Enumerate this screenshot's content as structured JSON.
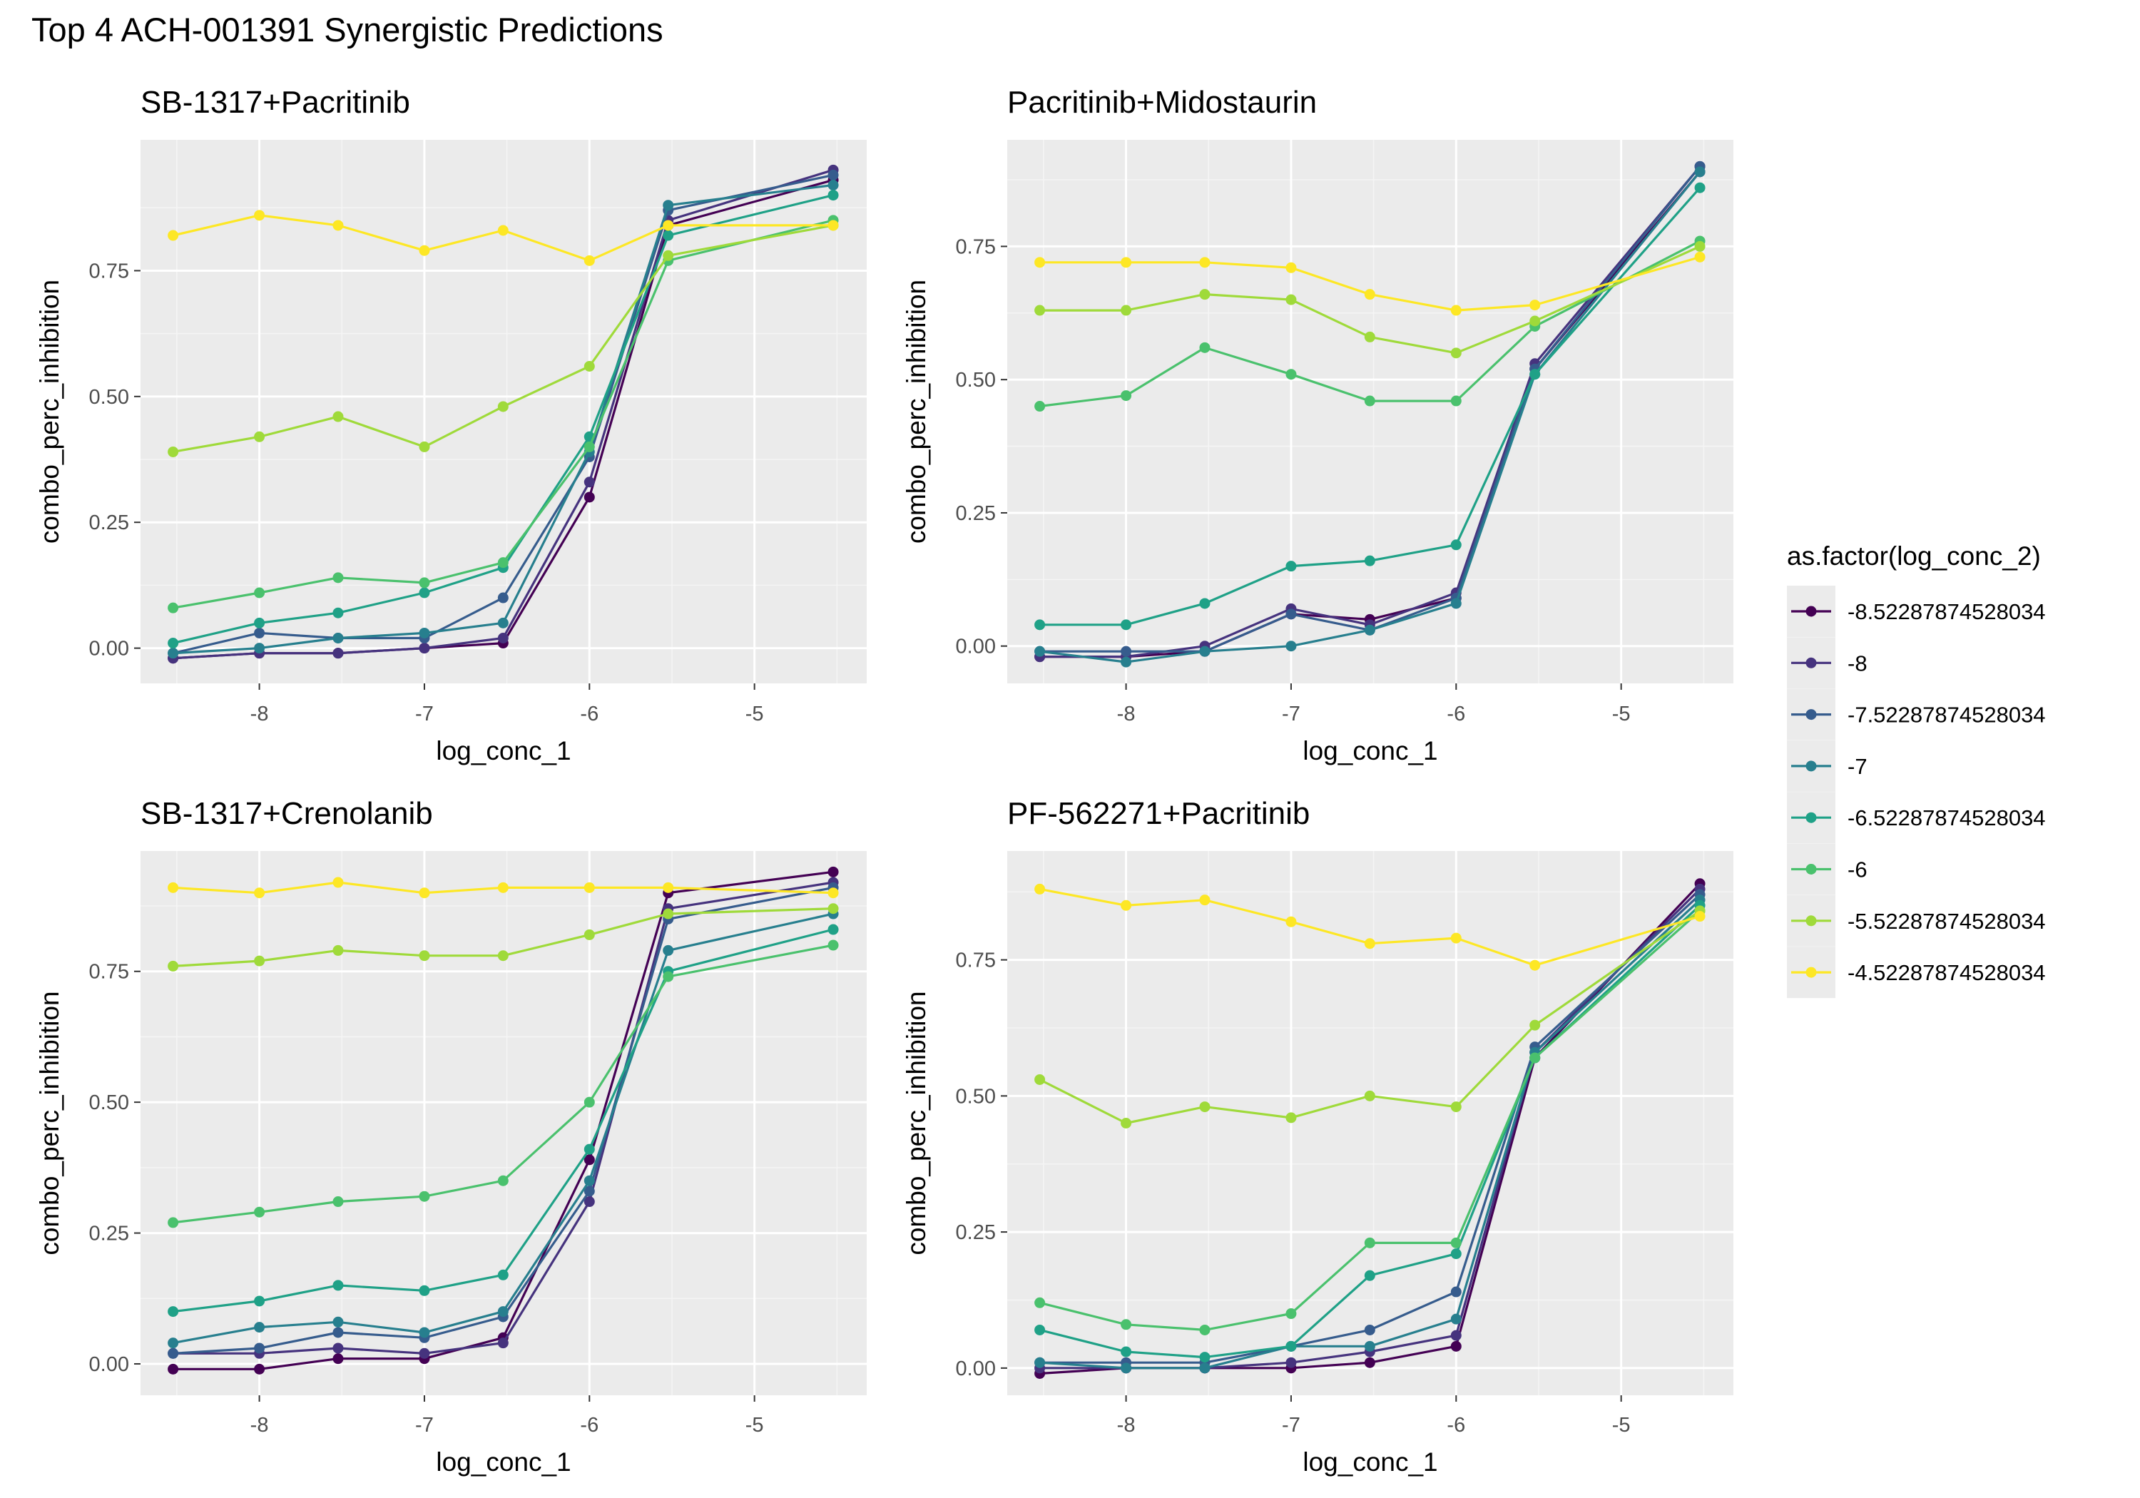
{
  "title": "Top 4 ACH-001391 Synergistic Predictions",
  "legend": {
    "title": "as.factor(log_conc_2)",
    "entries": [
      "-8.52287874528034",
      "-8",
      "-7.52287874528034",
      "-7",
      "-6.52287874528034",
      "-6",
      "-5.52287874528034",
      "-4.52287874528034"
    ],
    "colors": [
      "#440154",
      "#46337E",
      "#365C8D",
      "#277F8E",
      "#1FA187",
      "#4AC16D",
      "#9FDA3A",
      "#FDE725"
    ]
  },
  "chart_data": [
    {
      "type": "line",
      "title": "SB-1317+Pacritinib",
      "xlabel": "log_conc_1",
      "ylabel": "combo_perc_inhibition",
      "x": [
        -8.52287874528034,
        -8,
        -7.52287874528034,
        -7,
        -6.52287874528034,
        -6,
        -5.52287874528034,
        -4.52287874528034
      ],
      "xticks": [
        -8,
        -7,
        -6,
        -5
      ],
      "xtick_labels": [
        "-8",
        "-7",
        "-6",
        "-5"
      ],
      "yticks": [
        0,
        0.25,
        0.5,
        0.75
      ],
      "ytick_labels": [
        "0.00",
        "0.25",
        "0.50",
        "0.75"
      ],
      "xlim": [
        -8.72,
        -4.32
      ],
      "ylim": [
        -0.07,
        1.01
      ],
      "grid": true,
      "series": [
        {
          "name": "-8.52287874528034",
          "values": [
            -0.02,
            -0.01,
            -0.01,
            0.0,
            0.01,
            0.3,
            0.84,
            0.93
          ]
        },
        {
          "name": "-8",
          "values": [
            -0.02,
            -0.01,
            -0.01,
            0.0,
            0.02,
            0.33,
            0.85,
            0.95
          ]
        },
        {
          "name": "-7.52287874528034",
          "values": [
            -0.01,
            0.03,
            0.02,
            0.02,
            0.1,
            0.38,
            0.87,
            0.94
          ]
        },
        {
          "name": "-7",
          "values": [
            -0.01,
            0.0,
            0.02,
            0.03,
            0.05,
            0.39,
            0.88,
            0.92
          ]
        },
        {
          "name": "-6.52287874528034",
          "values": [
            0.01,
            0.05,
            0.07,
            0.11,
            0.16,
            0.42,
            0.82,
            0.9
          ]
        },
        {
          "name": "-6",
          "values": [
            0.08,
            0.11,
            0.14,
            0.13,
            0.17,
            0.4,
            0.77,
            0.85
          ]
        },
        {
          "name": "-5.52287874528034",
          "values": [
            0.39,
            0.42,
            0.46,
            0.4,
            0.48,
            0.56,
            0.78,
            0.84
          ]
        },
        {
          "name": "-4.52287874528034",
          "values": [
            0.82,
            0.86,
            0.84,
            0.79,
            0.83,
            0.77,
            0.84,
            0.84
          ]
        }
      ]
    },
    {
      "type": "line",
      "title": "Pacritinib+Midostaurin",
      "xlabel": "log_conc_1",
      "ylabel": "combo_perc_inhibition",
      "x": [
        -8.52287874528034,
        -8,
        -7.52287874528034,
        -7,
        -6.52287874528034,
        -6,
        -5.52287874528034,
        -4.52287874528034
      ],
      "xticks": [
        -8,
        -7,
        -6,
        -5
      ],
      "xtick_labels": [
        "-8",
        "-7",
        "-6",
        "-5"
      ],
      "yticks": [
        0,
        0.25,
        0.5,
        0.75
      ],
      "ytick_labels": [
        "0.00",
        "0.25",
        "0.50",
        "0.75"
      ],
      "xlim": [
        -8.72,
        -4.32
      ],
      "ylim": [
        -0.07,
        0.95
      ],
      "grid": true,
      "series": [
        {
          "name": "-8.52287874528034",
          "values": [
            -0.02,
            -0.02,
            -0.01,
            0.06,
            0.05,
            0.09,
            0.52,
            0.89
          ]
        },
        {
          "name": "-8",
          "values": [
            -0.02,
            -0.02,
            0.0,
            0.07,
            0.04,
            0.1,
            0.53,
            0.9
          ]
        },
        {
          "name": "-7.52287874528034",
          "values": [
            -0.01,
            -0.01,
            -0.01,
            0.06,
            0.03,
            0.09,
            0.52,
            0.9
          ]
        },
        {
          "name": "-7",
          "values": [
            -0.01,
            -0.03,
            -0.01,
            0.0,
            0.03,
            0.08,
            0.51,
            0.89
          ]
        },
        {
          "name": "-6.52287874528034",
          "values": [
            0.04,
            0.04,
            0.08,
            0.15,
            0.16,
            0.19,
            0.51,
            0.86
          ]
        },
        {
          "name": "-6",
          "values": [
            0.45,
            0.47,
            0.56,
            0.51,
            0.46,
            0.46,
            0.6,
            0.76
          ]
        },
        {
          "name": "-5.52287874528034",
          "values": [
            0.63,
            0.63,
            0.66,
            0.65,
            0.58,
            0.55,
            0.61,
            0.75
          ]
        },
        {
          "name": "-4.52287874528034",
          "values": [
            0.72,
            0.72,
            0.72,
            0.71,
            0.66,
            0.63,
            0.64,
            0.73
          ]
        }
      ]
    },
    {
      "type": "line",
      "title": "SB-1317+Crenolanib",
      "xlabel": "log_conc_1",
      "ylabel": "combo_perc_inhibition",
      "x": [
        -8.52287874528034,
        -8,
        -7.52287874528034,
        -7,
        -6.52287874528034,
        -6,
        -5.52287874528034,
        -4.52287874528034
      ],
      "xticks": [
        -8,
        -7,
        -6,
        -5
      ],
      "xtick_labels": [
        "-8",
        "-7",
        "-6",
        "-5"
      ],
      "yticks": [
        0,
        0.25,
        0.5,
        0.75
      ],
      "ytick_labels": [
        "0.00",
        "0.25",
        "0.50",
        "0.75"
      ],
      "xlim": [
        -8.72,
        -4.32
      ],
      "ylim": [
        -0.06,
        0.98
      ],
      "grid": true,
      "series": [
        {
          "name": "-8.52287874528034",
          "values": [
            -0.01,
            -0.01,
            0.01,
            0.01,
            0.05,
            0.39,
            0.9,
            0.94
          ]
        },
        {
          "name": "-8",
          "values": [
            0.02,
            0.02,
            0.03,
            0.02,
            0.04,
            0.31,
            0.87,
            0.92
          ]
        },
        {
          "name": "-7.52287874528034",
          "values": [
            0.02,
            0.03,
            0.06,
            0.05,
            0.09,
            0.33,
            0.85,
            0.91
          ]
        },
        {
          "name": "-7",
          "values": [
            0.04,
            0.07,
            0.08,
            0.06,
            0.1,
            0.35,
            0.79,
            0.86
          ]
        },
        {
          "name": "-6.52287874528034",
          "values": [
            0.1,
            0.12,
            0.15,
            0.14,
            0.17,
            0.41,
            0.75,
            0.83
          ]
        },
        {
          "name": "-6",
          "values": [
            0.27,
            0.29,
            0.31,
            0.32,
            0.35,
            0.5,
            0.74,
            0.8
          ]
        },
        {
          "name": "-5.52287874528034",
          "values": [
            0.76,
            0.77,
            0.79,
            0.78,
            0.78,
            0.82,
            0.86,
            0.87
          ]
        },
        {
          "name": "-4.52287874528034",
          "values": [
            0.91,
            0.9,
            0.92,
            0.9,
            0.91,
            0.91,
            0.91,
            0.9
          ]
        }
      ]
    },
    {
      "type": "line",
      "title": "PF-562271+Pacritinib",
      "xlabel": "log_conc_1",
      "ylabel": "combo_perc_inhibition",
      "x": [
        -8.52287874528034,
        -8,
        -7.52287874528034,
        -7,
        -6.52287874528034,
        -6,
        -5.52287874528034,
        -4.52287874528034
      ],
      "xticks": [
        -8,
        -7,
        -6,
        -5
      ],
      "xtick_labels": [
        "-8",
        "-7",
        "-6",
        "-5"
      ],
      "yticks": [
        0,
        0.25,
        0.5,
        0.75
      ],
      "ytick_labels": [
        "0.00",
        "0.25",
        "0.50",
        "0.75"
      ],
      "xlim": [
        -8.72,
        -4.32
      ],
      "ylim": [
        -0.05,
        0.95
      ],
      "grid": true,
      "series": [
        {
          "name": "-8.52287874528034",
          "values": [
            -0.01,
            0.0,
            0.0,
            0.0,
            0.01,
            0.04,
            0.57,
            0.89
          ]
        },
        {
          "name": "-8",
          "values": [
            0.0,
            0.0,
            0.0,
            0.01,
            0.03,
            0.06,
            0.58,
            0.88
          ]
        },
        {
          "name": "-7.52287874528034",
          "values": [
            0.01,
            0.01,
            0.01,
            0.04,
            0.07,
            0.14,
            0.59,
            0.87
          ]
        },
        {
          "name": "-7",
          "values": [
            0.01,
            0.0,
            0.0,
            0.04,
            0.04,
            0.09,
            0.58,
            0.86
          ]
        },
        {
          "name": "-6.52287874528034",
          "values": [
            0.07,
            0.03,
            0.02,
            0.04,
            0.17,
            0.21,
            0.57,
            0.85
          ]
        },
        {
          "name": "-6",
          "values": [
            0.12,
            0.08,
            0.07,
            0.1,
            0.23,
            0.23,
            0.57,
            0.84
          ]
        },
        {
          "name": "-5.52287874528034",
          "values": [
            0.53,
            0.45,
            0.48,
            0.46,
            0.5,
            0.48,
            0.63,
            0.84
          ]
        },
        {
          "name": "-4.52287874528034",
          "values": [
            0.88,
            0.85,
            0.86,
            0.82,
            0.78,
            0.79,
            0.74,
            0.83
          ]
        }
      ]
    }
  ]
}
